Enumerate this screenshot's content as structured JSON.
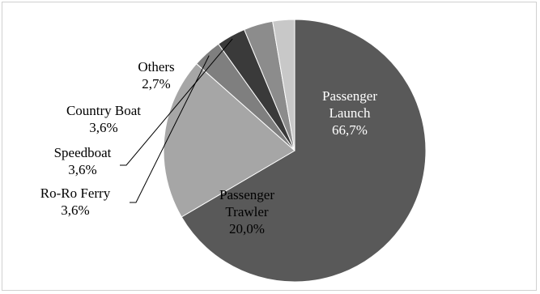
{
  "chart_data": {
    "type": "pie",
    "title": "",
    "slices": [
      {
        "name": "Passenger Launch",
        "name_lines": [
          "Passenger",
          "Launch"
        ],
        "value": 66.7,
        "value_label": "66,7%",
        "color": "#595959",
        "label_color": "#ffffff",
        "label_placement": "inside"
      },
      {
        "name": "Passenger Trawler",
        "name_lines": [
          "Passenger",
          "Trawler"
        ],
        "value": 20.0,
        "value_label": "20,0%",
        "color": "#a6a6a6",
        "label_color": "#000000",
        "label_placement": "inside"
      },
      {
        "name": "Ro-Ro Ferry",
        "name_lines": [
          "Ro-Ro Ferry"
        ],
        "value": 3.6,
        "value_label": "3,6%",
        "color": "#7f7f7f",
        "label_color": "#000000",
        "label_placement": "outside"
      },
      {
        "name": "Speedboat",
        "name_lines": [
          "Speedboat"
        ],
        "value": 3.6,
        "value_label": "3,6%",
        "color": "#3a3a3a",
        "label_color": "#000000",
        "label_placement": "outside"
      },
      {
        "name": "Country Boat",
        "name_lines": [
          "Country Boat"
        ],
        "value": 3.6,
        "value_label": "3,6%",
        "color": "#8c8c8c",
        "label_color": "#000000",
        "label_placement": "outside"
      },
      {
        "name": "Others",
        "name_lines": [
          "Others"
        ],
        "value": 2.7,
        "value_label": "2,7%",
        "color": "#c8c8c8",
        "label_color": "#000000",
        "label_placement": "outside"
      }
    ],
    "start_angle_deg": 0,
    "direction": "clockwise",
    "legend": "none"
  }
}
